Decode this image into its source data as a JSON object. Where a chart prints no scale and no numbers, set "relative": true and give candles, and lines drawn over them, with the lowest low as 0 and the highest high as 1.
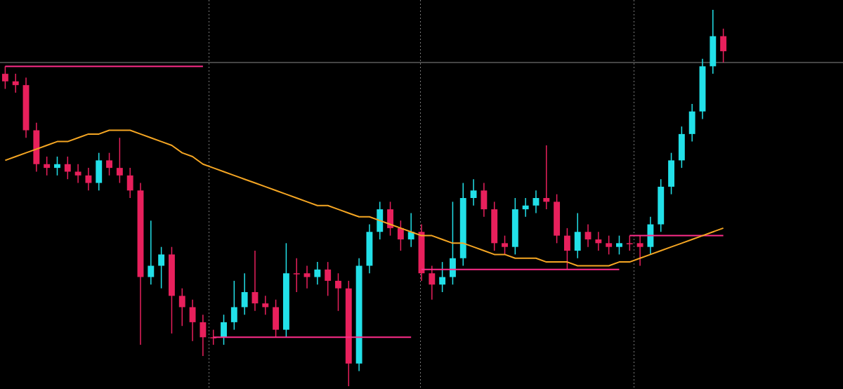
{
  "chart_data": {
    "type": "candlestick",
    "relative": true,
    "categories": [
      null,
      null,
      null,
      null,
      null,
      null,
      null,
      null,
      null,
      null,
      null,
      null,
      null,
      null,
      null,
      null,
      null,
      null,
      null,
      null,
      null,
      null,
      null,
      null,
      null,
      null,
      null,
      null,
      null,
      null,
      null,
      null,
      null,
      null,
      null,
      null,
      null,
      null,
      null,
      null,
      null,
      null,
      null,
      null,
      null,
      null,
      null,
      null,
      null,
      null,
      null,
      null,
      null,
      null,
      null,
      null,
      null,
      null,
      null,
      null,
      null,
      null,
      null,
      null,
      null,
      null,
      null,
      null,
      null,
      null,
      null,
      null,
      null,
      null,
      null,
      null,
      null,
      null,
      null,
      null,
      null
    ],
    "ohlc": [
      [
        0.83,
        0.85,
        0.79,
        0.81
      ],
      [
        0.81,
        0.83,
        0.78,
        0.8
      ],
      [
        0.8,
        0.82,
        0.66,
        0.68
      ],
      [
        0.68,
        0.7,
        0.57,
        0.59
      ],
      [
        0.59,
        0.61,
        0.56,
        0.58
      ],
      [
        0.58,
        0.61,
        0.56,
        0.59
      ],
      [
        0.59,
        0.61,
        0.55,
        0.57
      ],
      [
        0.57,
        0.59,
        0.54,
        0.56
      ],
      [
        0.56,
        0.58,
        0.52,
        0.54
      ],
      [
        0.54,
        0.62,
        0.52,
        0.6
      ],
      [
        0.6,
        0.62,
        0.56,
        0.58
      ],
      [
        0.58,
        0.66,
        0.54,
        0.56
      ],
      [
        0.56,
        0.58,
        0.5,
        0.52
      ],
      [
        0.52,
        0.54,
        0.11,
        0.29
      ],
      [
        0.29,
        0.44,
        0.27,
        0.32
      ],
      [
        0.32,
        0.37,
        0.26,
        0.35
      ],
      [
        0.35,
        0.37,
        0.14,
        0.24
      ],
      [
        0.24,
        0.26,
        0.16,
        0.21
      ],
      [
        0.21,
        0.23,
        0.12,
        0.17
      ],
      [
        0.17,
        0.19,
        0.08,
        0.13
      ],
      [
        0.13,
        0.15,
        0.11,
        0.13
      ],
      [
        0.13,
        0.19,
        0.11,
        0.17
      ],
      [
        0.17,
        0.28,
        0.15,
        0.21
      ],
      [
        0.21,
        0.3,
        0.19,
        0.25
      ],
      [
        0.25,
        0.36,
        0.2,
        0.22
      ],
      [
        0.22,
        0.24,
        0.19,
        0.21
      ],
      [
        0.21,
        0.23,
        0.13,
        0.15
      ],
      [
        0.15,
        0.38,
        0.13,
        0.3
      ],
      [
        0.3,
        0.34,
        0.25,
        0.3
      ],
      [
        0.3,
        0.32,
        0.26,
        0.29
      ],
      [
        0.29,
        0.33,
        0.27,
        0.31
      ],
      [
        0.31,
        0.33,
        0.24,
        0.28
      ],
      [
        0.28,
        0.3,
        0.2,
        0.26
      ],
      [
        0.26,
        0.28,
        0.0,
        0.06
      ],
      [
        0.06,
        0.34,
        0.04,
        0.32
      ],
      [
        0.32,
        0.43,
        0.3,
        0.41
      ],
      [
        0.41,
        0.49,
        0.39,
        0.47
      ],
      [
        0.47,
        0.49,
        0.4,
        0.42
      ],
      [
        0.42,
        0.44,
        0.36,
        0.39
      ],
      [
        0.39,
        0.46,
        0.37,
        0.41
      ],
      [
        0.41,
        0.43,
        0.28,
        0.3
      ],
      [
        0.3,
        0.32,
        0.23,
        0.27
      ],
      [
        0.27,
        0.33,
        0.25,
        0.29
      ],
      [
        0.29,
        0.49,
        0.27,
        0.34
      ],
      [
        0.34,
        0.54,
        0.32,
        0.5
      ],
      [
        0.5,
        0.55,
        0.48,
        0.52
      ],
      [
        0.52,
        0.54,
        0.45,
        0.47
      ],
      [
        0.47,
        0.49,
        0.36,
        0.38
      ],
      [
        0.38,
        0.4,
        0.35,
        0.37
      ],
      [
        0.37,
        0.5,
        0.35,
        0.47
      ],
      [
        0.47,
        0.5,
        0.45,
        0.48
      ],
      [
        0.48,
        0.52,
        0.46,
        0.5
      ],
      [
        0.5,
        0.64,
        0.47,
        0.49
      ],
      [
        0.49,
        0.51,
        0.38,
        0.4
      ],
      [
        0.4,
        0.42,
        0.31,
        0.36
      ],
      [
        0.36,
        0.46,
        0.34,
        0.41
      ],
      [
        0.41,
        0.43,
        0.37,
        0.39
      ],
      [
        0.39,
        0.41,
        0.36,
        0.38
      ],
      [
        0.38,
        0.4,
        0.35,
        0.37
      ],
      [
        0.37,
        0.4,
        0.35,
        0.38
      ],
      [
        0.38,
        0.4,
        0.36,
        0.38
      ],
      [
        0.38,
        0.4,
        0.32,
        0.37
      ],
      [
        0.37,
        0.45,
        0.35,
        0.43
      ],
      [
        0.43,
        0.55,
        0.41,
        0.53
      ],
      [
        0.53,
        0.62,
        0.51,
        0.6
      ],
      [
        0.6,
        0.69,
        0.58,
        0.67
      ],
      [
        0.67,
        0.75,
        0.65,
        0.73
      ],
      [
        0.73,
        0.87,
        0.71,
        0.85
      ],
      [
        0.85,
        1.0,
        0.83,
        0.93
      ],
      [
        0.93,
        0.95,
        0.86,
        0.89
      ],
      null,
      null,
      null,
      null,
      null,
      null,
      null,
      null,
      null,
      null,
      null
    ],
    "colors": [
      "#e8205c",
      "#e8205c",
      "#e8205c",
      "#e8205c",
      "#e8205c",
      "#22e0e8",
      "#e8205c",
      "#e8205c",
      "#e8205c",
      "#22e0e8",
      "#e8205c",
      "#e8205c",
      "#e8205c",
      "#e8205c",
      "#22e0e8",
      "#22e0e8",
      "#e8205c",
      "#e8205c",
      "#e8205c",
      "#e8205c",
      "#e8205c",
      "#22e0e8",
      "#22e0e8",
      "#22e0e8",
      "#e8205c",
      "#e8205c",
      "#e8205c",
      "#22e0e8",
      "#e8205c",
      "#e8205c",
      "#22e0e8",
      "#e8205c",
      "#e8205c",
      "#e8205c",
      "#22e0e8",
      "#22e0e8",
      "#22e0e8",
      "#e8205c",
      "#e8205c",
      "#22e0e8",
      "#e8205c",
      "#e8205c",
      "#22e0e8",
      "#22e0e8",
      "#22e0e8",
      "#22e0e8",
      "#e8205c",
      "#e8205c",
      "#e8205c",
      "#22e0e8",
      "#22e0e8",
      "#22e0e8",
      "#e8205c",
      "#e8205c",
      "#e8205c",
      "#22e0e8",
      "#e8205c",
      "#e8205c",
      "#e8205c",
      "#22e0e8",
      "#e8205c",
      "#e8205c",
      "#22e0e8",
      "#22e0e8",
      "#22e0e8",
      "#22e0e8",
      "#22e0e8",
      "#22e0e8",
      "#22e0e8",
      "#e8205c",
      null,
      null,
      null,
      null,
      null,
      null,
      null,
      null,
      null,
      null,
      null
    ],
    "series": [
      {
        "type": "line",
        "color": "#f5a623",
        "values": [
          0.6,
          0.61,
          0.62,
          0.63,
          0.64,
          0.65,
          0.65,
          0.66,
          0.67,
          0.67,
          0.68,
          0.68,
          0.68,
          0.67,
          0.66,
          0.65,
          0.64,
          0.62,
          0.61,
          0.59,
          0.58,
          0.57,
          0.56,
          0.55,
          0.54,
          0.53,
          0.52,
          0.51,
          0.5,
          0.49,
          0.48,
          0.48,
          0.47,
          0.46,
          0.45,
          0.45,
          0.44,
          0.43,
          0.42,
          0.41,
          0.4,
          0.4,
          0.39,
          0.38,
          0.38,
          0.37,
          0.36,
          0.35,
          0.35,
          0.34,
          0.34,
          0.34,
          0.33,
          0.33,
          0.33,
          0.32,
          0.32,
          0.32,
          0.32,
          0.33,
          0.33,
          0.34,
          0.35,
          0.36,
          0.37,
          0.38,
          0.39,
          0.4,
          0.41,
          0.42,
          null,
          null,
          null,
          null,
          null,
          null,
          null,
          null,
          null,
          null,
          null
        ]
      },
      {
        "type": "line",
        "color": "#ff2d8a",
        "values": [
          0.85,
          0.85,
          0.85,
          0.85,
          0.85,
          0.85,
          0.85,
          0.85,
          0.85,
          0.85,
          0.85,
          0.85,
          0.85,
          0.85,
          0.85,
          0.85,
          0.85,
          0.85,
          0.85,
          0.85,
          null,
          null,
          null,
          null,
          null,
          null,
          null,
          null,
          null,
          null,
          null,
          null,
          null,
          null,
          null,
          null,
          null,
          null,
          null,
          null,
          0.31,
          0.31,
          0.31,
          0.31,
          0.31,
          0.31,
          0.31,
          0.31,
          0.31,
          0.31,
          0.31,
          0.31,
          0.31,
          0.31,
          0.31,
          0.31,
          0.31,
          0.31,
          0.31,
          0.31,
          null,
          null,
          null,
          null,
          null,
          null,
          null,
          null,
          null,
          null,
          null,
          null,
          null,
          null,
          null,
          null,
          null,
          null,
          null,
          null,
          null
        ]
      },
      {
        "type": "line",
        "color": "#ff2d8a",
        "values": [
          null,
          null,
          null,
          null,
          null,
          null,
          null,
          null,
          null,
          null,
          null,
          null,
          null,
          null,
          null,
          null,
          null,
          null,
          null,
          null,
          0.13,
          0.13,
          0.13,
          0.13,
          0.13,
          0.13,
          0.13,
          0.13,
          0.13,
          0.13,
          0.13,
          0.13,
          0.13,
          0.13,
          0.13,
          0.13,
          0.13,
          0.13,
          0.13,
          0.13,
          null,
          null,
          null,
          null,
          null,
          null,
          null,
          null,
          null,
          null,
          null,
          null,
          null,
          null,
          null,
          null,
          null,
          null,
          null,
          null,
          0.4,
          0.4,
          0.4,
          0.4,
          0.4,
          0.4,
          0.4,
          0.4,
          0.4,
          0.4,
          null,
          null,
          null,
          null,
          null,
          null,
          null,
          null,
          null,
          null,
          null
        ]
      }
    ],
    "ref_lines": [
      {
        "axis": "y",
        "value": 0.86,
        "color": "#8a8a8a"
      }
    ]
  }
}
